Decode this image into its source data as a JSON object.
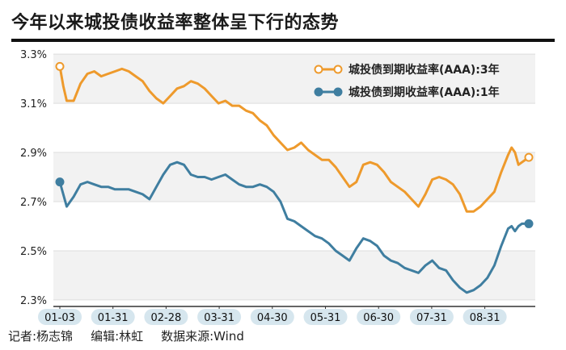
{
  "title": "今年以来城投债收益率整体呈下行的态势",
  "footer": {
    "reporter": "记者:杨志锦",
    "editor": "编辑:林虹",
    "source": "数据来源:Wind"
  },
  "colors": {
    "series_3y": "#EE9A2C",
    "series_1y": "#3F7EA0",
    "grid": "#DDDDDD",
    "band": "#F2F2F2",
    "tick_pill": "#D6E6EE"
  },
  "chart_data": {
    "type": "line",
    "title": "今年以来城投债收益率整体呈下行的态势",
    "xlabel": "",
    "ylabel": "",
    "y_tick_labels": [
      "3.3%",
      "3.1%",
      "2.9%",
      "2.7%",
      "2.5%",
      "2.3%"
    ],
    "y_ticks": [
      3.3,
      3.1,
      2.9,
      2.7,
      2.5,
      2.3
    ],
    "ylim": [
      2.28,
      3.33
    ],
    "x_tick_labels": [
      "01-03",
      "01-31",
      "02-28",
      "03-31",
      "04-30",
      "05-31",
      "06-30",
      "07-31",
      "08-31"
    ],
    "legend_position": "top-right",
    "grid": "horizontal bands",
    "series": [
      {
        "name": "城投债到期收益率(AAA):3年",
        "marker": "open-circle-at-ends",
        "points": [
          [
            0,
            3.25
          ],
          [
            0.5,
            3.17
          ],
          [
            1,
            3.11
          ],
          [
            2,
            3.11
          ],
          [
            3,
            3.18
          ],
          [
            4,
            3.22
          ],
          [
            5,
            3.23
          ],
          [
            6,
            3.21
          ],
          [
            7,
            3.22
          ],
          [
            8,
            3.23
          ],
          [
            9,
            3.24
          ],
          [
            10,
            3.23
          ],
          [
            11,
            3.21
          ],
          [
            12,
            3.19
          ],
          [
            13,
            3.15
          ],
          [
            14,
            3.12
          ],
          [
            15,
            3.1
          ],
          [
            16,
            3.13
          ],
          [
            17,
            3.16
          ],
          [
            18,
            3.17
          ],
          [
            19,
            3.19
          ],
          [
            20,
            3.18
          ],
          [
            21,
            3.16
          ],
          [
            22,
            3.13
          ],
          [
            23,
            3.1
          ],
          [
            24,
            3.11
          ],
          [
            25,
            3.09
          ],
          [
            26,
            3.09
          ],
          [
            27,
            3.07
          ],
          [
            28,
            3.06
          ],
          [
            29,
            3.03
          ],
          [
            30,
            3.01
          ],
          [
            31,
            2.97
          ],
          [
            32,
            2.94
          ],
          [
            33,
            2.91
          ],
          [
            34,
            2.92
          ],
          [
            35,
            2.94
          ],
          [
            36,
            2.91
          ],
          [
            37,
            2.89
          ],
          [
            38,
            2.87
          ],
          [
            39,
            2.87
          ],
          [
            40,
            2.84
          ],
          [
            41,
            2.8
          ],
          [
            42,
            2.76
          ],
          [
            43,
            2.78
          ],
          [
            44,
            2.85
          ],
          [
            45,
            2.86
          ],
          [
            46,
            2.85
          ],
          [
            47,
            2.82
          ],
          [
            48,
            2.78
          ],
          [
            49,
            2.76
          ],
          [
            50,
            2.74
          ],
          [
            51,
            2.71
          ],
          [
            52,
            2.68
          ],
          [
            53,
            2.73
          ],
          [
            54,
            2.79
          ],
          [
            55,
            2.8
          ],
          [
            56,
            2.79
          ],
          [
            57,
            2.77
          ],
          [
            58,
            2.73
          ],
          [
            59,
            2.66
          ],
          [
            60,
            2.66
          ],
          [
            61,
            2.68
          ],
          [
            62,
            2.71
          ],
          [
            63,
            2.74
          ],
          [
            64,
            2.82
          ],
          [
            65,
            2.89
          ],
          [
            65.5,
            2.92
          ],
          [
            66,
            2.9
          ],
          [
            66.5,
            2.85
          ],
          [
            67,
            2.86
          ],
          [
            68,
            2.88
          ]
        ]
      },
      {
        "name": "城投债到期收益率(AAA):1年",
        "marker": "filled-circle-at-ends",
        "points": [
          [
            0,
            2.78
          ],
          [
            1,
            2.68
          ],
          [
            2,
            2.72
          ],
          [
            3,
            2.77
          ],
          [
            4,
            2.78
          ],
          [
            5,
            2.77
          ],
          [
            6,
            2.76
          ],
          [
            7,
            2.76
          ],
          [
            8,
            2.75
          ],
          [
            9,
            2.75
          ],
          [
            10,
            2.75
          ],
          [
            11,
            2.74
          ],
          [
            12,
            2.73
          ],
          [
            13,
            2.71
          ],
          [
            14,
            2.76
          ],
          [
            15,
            2.81
          ],
          [
            16,
            2.85
          ],
          [
            17,
            2.86
          ],
          [
            18,
            2.85
          ],
          [
            19,
            2.81
          ],
          [
            20,
            2.8
          ],
          [
            21,
            2.8
          ],
          [
            22,
            2.79
          ],
          [
            23,
            2.8
          ],
          [
            24,
            2.81
          ],
          [
            25,
            2.79
          ],
          [
            26,
            2.77
          ],
          [
            27,
            2.76
          ],
          [
            28,
            2.76
          ],
          [
            29,
            2.77
          ],
          [
            30,
            2.76
          ],
          [
            31,
            2.74
          ],
          [
            32,
            2.7
          ],
          [
            33,
            2.63
          ],
          [
            34,
            2.62
          ],
          [
            35,
            2.6
          ],
          [
            36,
            2.58
          ],
          [
            37,
            2.56
          ],
          [
            38,
            2.55
          ],
          [
            39,
            2.53
          ],
          [
            40,
            2.5
          ],
          [
            41,
            2.48
          ],
          [
            42,
            2.46
          ],
          [
            43,
            2.51
          ],
          [
            44,
            2.55
          ],
          [
            45,
            2.54
          ],
          [
            46,
            2.52
          ],
          [
            47,
            2.48
          ],
          [
            48,
            2.46
          ],
          [
            49,
            2.45
          ],
          [
            50,
            2.43
          ],
          [
            51,
            2.42
          ],
          [
            52,
            2.41
          ],
          [
            53,
            2.44
          ],
          [
            54,
            2.46
          ],
          [
            55,
            2.43
          ],
          [
            56,
            2.42
          ],
          [
            57,
            2.38
          ],
          [
            58,
            2.35
          ],
          [
            59,
            2.33
          ],
          [
            60,
            2.34
          ],
          [
            61,
            2.36
          ],
          [
            62,
            2.39
          ],
          [
            63,
            2.44
          ],
          [
            64,
            2.52
          ],
          [
            65,
            2.59
          ],
          [
            65.5,
            2.6
          ],
          [
            66,
            2.58
          ],
          [
            66.5,
            2.6
          ],
          [
            67,
            2.61
          ],
          [
            68,
            2.61
          ]
        ]
      }
    ]
  }
}
